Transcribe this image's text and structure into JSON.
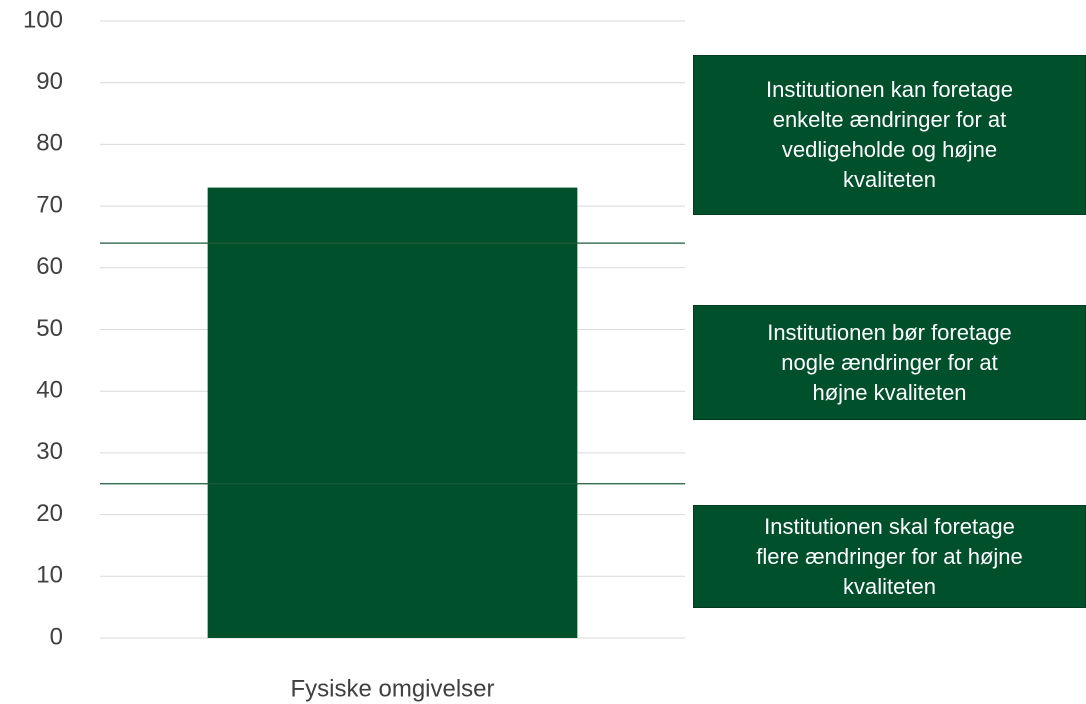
{
  "chart_data": {
    "type": "bar",
    "categories": [
      "Fysiske omgivelser"
    ],
    "values": [
      73
    ],
    "color": "#00502c",
    "ylim": [
      0,
      100
    ],
    "yticks": [
      0,
      10,
      20,
      30,
      40,
      50,
      60,
      70,
      80,
      90,
      100
    ],
    "grid": true,
    "reference_lines": [
      {
        "value": 64,
        "color": "#1e5a3c"
      },
      {
        "value": 25,
        "color": "#1e5a3c"
      }
    ],
    "annotations": [
      {
        "lines": [
          "Institutionen kan foretage",
          "enkelte ændringer for at",
          "vedligeholde og højne",
          "kvaliteten"
        ]
      },
      {
        "lines": [
          "Institutionen bør foretage",
          "nogle ændringer for at",
          "højne kvaliteten"
        ]
      },
      {
        "lines": [
          "Institutionen skal foretage",
          "flere ændringer for at højne",
          "kvaliteten"
        ]
      }
    ]
  }
}
